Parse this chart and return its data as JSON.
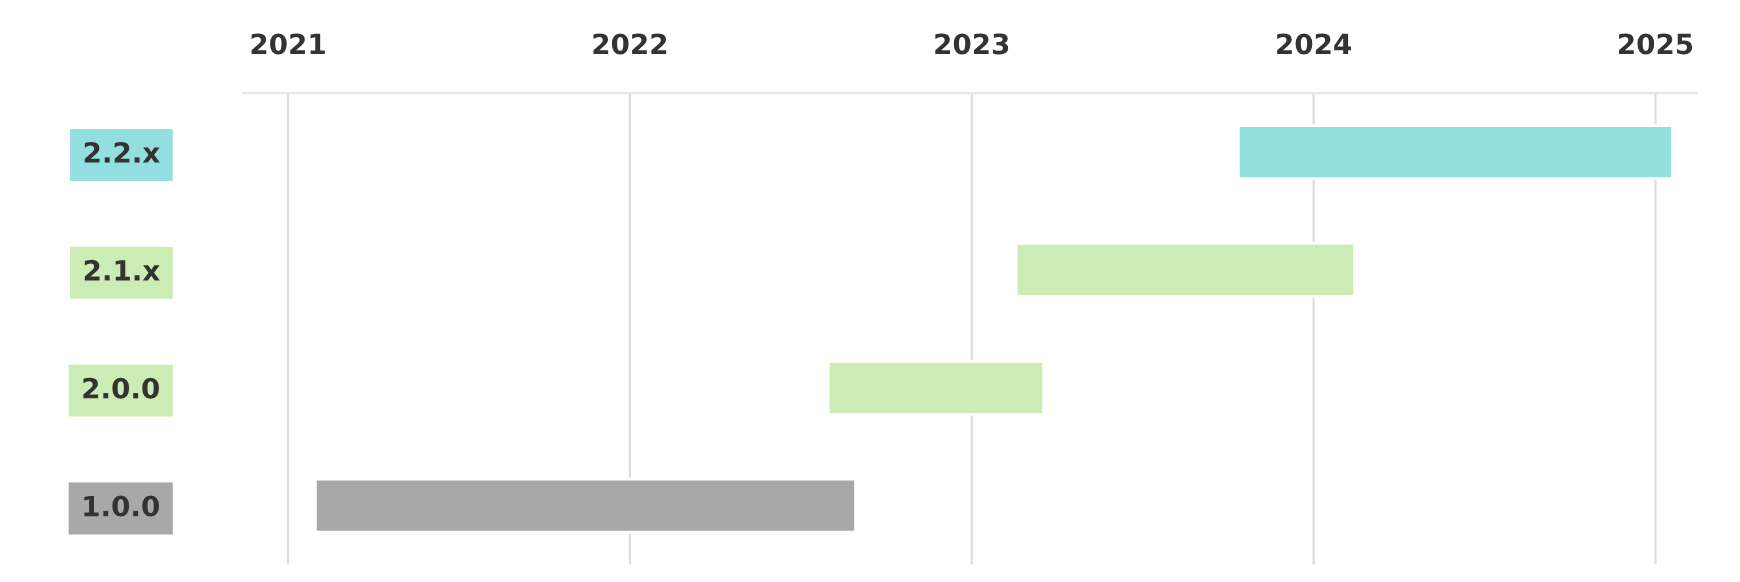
{
  "chart_data": {
    "type": "bar",
    "orientation": "horizontal",
    "categories": [
      "2.2.x",
      "2.1.x",
      "2.0.0",
      "1.0.0"
    ],
    "base": [
      2023.78,
      2023.13,
      2022.58,
      2021.08
    ],
    "values": [
      1.27,
      0.99,
      0.63,
      1.58
    ],
    "colors": [
      "#93dfe0",
      "#cbedb5",
      "#cbedb5",
      "#a8a8a8"
    ],
    "xlim": [
      2020.87,
      2025.12
    ],
    "xticks": [
      2021,
      2022,
      2023,
      2024,
      2025
    ],
    "grid": "x",
    "legend": false
  }
}
